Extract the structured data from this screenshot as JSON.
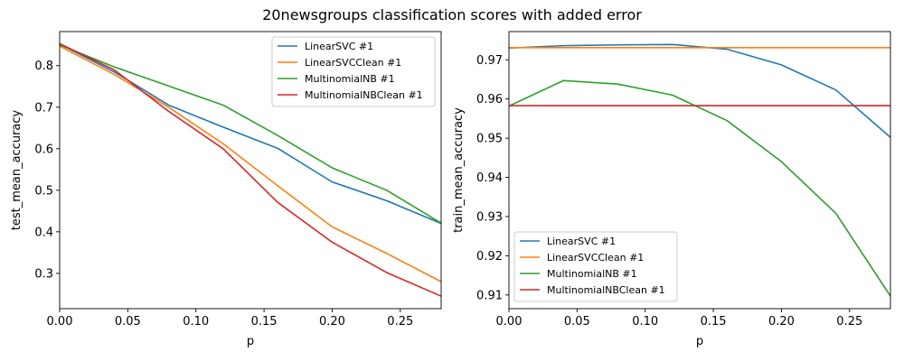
{
  "figure": {
    "suptitle": "20newsgroups classification scores with added error"
  },
  "chart_data": [
    {
      "type": "line",
      "xlabel": "p",
      "ylabel": "test_mean_accuracy",
      "xlim": [
        0.0,
        0.28
      ],
      "ylim": [
        0.215,
        0.882
      ],
      "xticks": [
        0.0,
        0.05,
        0.1,
        0.15,
        0.2,
        0.25
      ],
      "xtick_labels": [
        "0.00",
        "0.05",
        "0.10",
        "0.15",
        "0.20",
        "0.25"
      ],
      "yticks": [
        0.3,
        0.4,
        0.5,
        0.6,
        0.7,
        0.8
      ],
      "ytick_labels": [
        "0.3",
        "0.4",
        "0.5",
        "0.6",
        "0.7",
        "0.8"
      ],
      "legend_position": "top-right",
      "x": [
        0.0,
        0.04,
        0.08,
        0.12,
        0.16,
        0.2,
        0.24,
        0.28
      ],
      "series": [
        {
          "name": "LinearSVC #1",
          "color": "#1f77b4",
          "values": [
            0.852,
            0.785,
            0.705,
            0.652,
            0.601,
            0.52,
            0.475,
            0.42
          ]
        },
        {
          "name": "LinearSVCClean #1",
          "color": "#ff7f0e",
          "values": [
            0.847,
            0.779,
            0.7,
            0.612,
            0.511,
            0.412,
            0.348,
            0.28
          ]
        },
        {
          "name": "MultinomialNB #1",
          "color": "#2ca02c",
          "values": [
            0.85,
            0.797,
            0.751,
            0.705,
            0.632,
            0.554,
            0.5,
            0.421
          ]
        },
        {
          "name": "MultinomialNBClean #1",
          "color": "#d62728",
          "values": [
            0.853,
            0.79,
            0.69,
            0.6,
            0.471,
            0.375,
            0.302,
            0.245
          ]
        }
      ]
    },
    {
      "type": "line",
      "xlabel": "p",
      "ylabel": "train_mean_accuracy",
      "xlim": [
        0.0,
        0.28
      ],
      "ylim": [
        0.9065,
        0.9772
      ],
      "xticks": [
        0.0,
        0.05,
        0.1,
        0.15,
        0.2,
        0.25
      ],
      "xtick_labels": [
        "0.00",
        "0.05",
        "0.10",
        "0.15",
        "0.20",
        "0.25"
      ],
      "yticks": [
        0.91,
        0.92,
        0.93,
        0.94,
        0.95,
        0.96,
        0.97
      ],
      "ytick_labels": [
        "0.91",
        "0.92",
        "0.93",
        "0.94",
        "0.95",
        "0.96",
        "0.97"
      ],
      "legend_position": "bottom-left",
      "x": [
        0.0,
        0.04,
        0.08,
        0.12,
        0.16,
        0.2,
        0.24,
        0.28
      ],
      "series": [
        {
          "name": "LinearSVC #1",
          "color": "#1f77b4",
          "values": [
            0.973,
            0.9736,
            0.9738,
            0.9739,
            0.9727,
            0.9687,
            0.9623,
            0.9502
          ]
        },
        {
          "name": "LinearSVCClean #1",
          "color": "#ff7f0e",
          "values": [
            0.9731,
            0.9731,
            0.9731,
            0.9731,
            0.9731,
            0.9731,
            0.9731,
            0.9731
          ]
        },
        {
          "name": "MultinomialNB #1",
          "color": "#2ca02c",
          "values": [
            0.9582,
            0.9647,
            0.9638,
            0.961,
            0.9545,
            0.944,
            0.9308,
            0.9097
          ]
        },
        {
          "name": "MultinomialNBClean #1",
          "color": "#d62728",
          "values": [
            0.9583,
            0.9583,
            0.9583,
            0.9583,
            0.9583,
            0.9583,
            0.9583,
            0.9583
          ]
        }
      ]
    }
  ]
}
